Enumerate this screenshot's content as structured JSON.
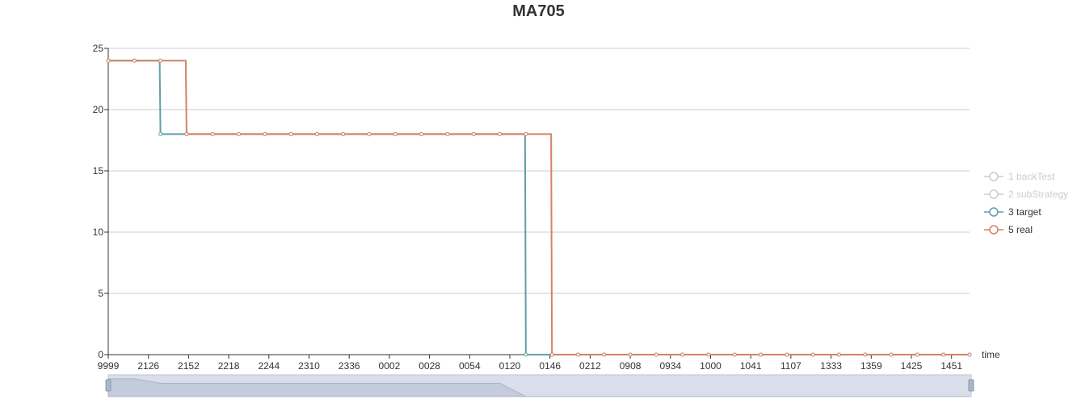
{
  "chart_data": {
    "type": "line",
    "title": "MA705",
    "xlabel": "time",
    "ylabel": "",
    "ylim": [
      0,
      25
    ],
    "y_ticks": [
      0,
      5,
      10,
      15,
      20,
      25
    ],
    "grid": true,
    "legend_position": "right",
    "x_tick_labels": [
      "9999",
      "2126",
      "2152",
      "2218",
      "2244",
      "2310",
      "2336",
      "0002",
      "0028",
      "0054",
      "0120",
      "0146",
      "0212",
      "0908",
      "0934",
      "1000",
      "1041",
      "1107",
      "1333",
      "1359",
      "1425",
      "1451"
    ],
    "series": [
      {
        "name": "1 backTest",
        "visible": false,
        "color": "#cccccc",
        "values": []
      },
      {
        "name": "2 subStrategy",
        "visible": false,
        "color": "#cccccc",
        "values": []
      },
      {
        "name": "3 target",
        "visible": true,
        "color": "#61a0a8",
        "values": [
          24,
          24,
          18,
          18,
          18,
          18,
          18,
          18,
          18,
          18,
          18,
          18,
          18,
          18,
          18,
          18,
          0,
          0,
          0,
          0,
          0,
          0,
          0,
          0,
          0,
          0,
          0,
          0,
          0,
          0,
          0,
          0,
          0,
          0
        ]
      },
      {
        "name": "5 real",
        "visible": true,
        "color": "#d48265",
        "values": [
          24,
          24,
          24,
          18,
          18,
          18,
          18,
          18,
          18,
          18,
          18,
          18,
          18,
          18,
          18,
          18,
          18,
          0,
          0,
          0,
          0,
          0,
          0,
          0,
          0,
          0,
          0,
          0,
          0,
          0,
          0,
          0,
          0,
          0
        ]
      }
    ]
  }
}
